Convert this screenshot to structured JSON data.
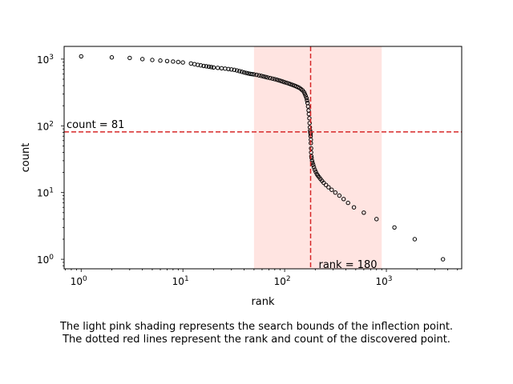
{
  "chart_data": {
    "type": "scatter",
    "xlabel": "rank",
    "ylabel": "count",
    "xscale": "log",
    "yscale": "log",
    "xlim": [
      0.68,
      5500
    ],
    "ylim": [
      0.72,
      1550
    ],
    "grid": false,
    "x_ticks": [
      {
        "value": 1,
        "base": "10",
        "exp": "0"
      },
      {
        "value": 10,
        "base": "10",
        "exp": "1"
      },
      {
        "value": 100,
        "base": "10",
        "exp": "2"
      },
      {
        "value": 1000,
        "base": "10",
        "exp": "3"
      }
    ],
    "y_ticks": [
      {
        "value": 1,
        "base": "10",
        "exp": "0"
      },
      {
        "value": 10,
        "base": "10",
        "exp": "1"
      },
      {
        "value": 100,
        "base": "10",
        "exp": "2"
      },
      {
        "value": 1000,
        "base": "10",
        "exp": "3"
      }
    ],
    "search_bounds": {
      "x_from": 50,
      "x_to": 900,
      "color": "#ffe4e1"
    },
    "inflection": {
      "rank": 180,
      "count": 81,
      "line_color": "#d62728",
      "rank_label": "rank = 180",
      "count_label": "count = 81"
    },
    "marker": {
      "style": "hollow-circle",
      "edge_color": "#000000"
    },
    "points": [
      [
        1,
        1100
      ],
      [
        2,
        1060
      ],
      [
        3,
        1040
      ],
      [
        4,
        1000
      ],
      [
        5,
        970
      ],
      [
        6,
        950
      ],
      [
        7,
        935
      ],
      [
        8,
        920
      ],
      [
        9,
        905
      ],
      [
        10,
        890
      ],
      [
        12,
        860
      ],
      [
        13,
        840
      ],
      [
        14,
        820
      ],
      [
        15,
        805
      ],
      [
        16,
        790
      ],
      [
        17,
        780
      ],
      [
        18,
        770
      ],
      [
        19,
        760
      ],
      [
        20,
        750
      ],
      [
        22,
        740
      ],
      [
        24,
        730
      ],
      [
        26,
        720
      ],
      [
        28,
        710
      ],
      [
        30,
        700
      ],
      [
        32,
        690
      ],
      [
        34,
        675
      ],
      [
        36,
        660
      ],
      [
        38,
        645
      ],
      [
        40,
        630
      ],
      [
        42,
        620
      ],
      [
        44,
        610
      ],
      [
        46,
        600
      ],
      [
        48,
        595
      ],
      [
        50,
        590
      ],
      [
        53,
        580
      ],
      [
        56,
        570
      ],
      [
        59,
        560
      ],
      [
        62,
        550
      ],
      [
        65,
        540
      ],
      [
        68,
        530
      ],
      [
        72,
        520
      ],
      [
        76,
        510
      ],
      [
        80,
        500
      ],
      [
        84,
        490
      ],
      [
        88,
        480
      ],
      [
        92,
        470
      ],
      [
        96,
        460
      ],
      [
        100,
        450
      ],
      [
        105,
        440
      ],
      [
        110,
        430
      ],
      [
        115,
        420
      ],
      [
        120,
        410
      ],
      [
        125,
        400
      ],
      [
        130,
        390
      ],
      [
        135,
        380
      ],
      [
        140,
        370
      ],
      [
        145,
        355
      ],
      [
        150,
        340
      ],
      [
        155,
        320
      ],
      [
        158,
        300
      ],
      [
        161,
        280
      ],
      [
        164,
        260
      ],
      [
        166,
        240
      ],
      [
        168,
        220
      ],
      [
        170,
        195
      ],
      [
        172,
        170
      ],
      [
        173,
        150
      ],
      [
        175,
        130
      ],
      [
        176,
        110
      ],
      [
        177,
        95
      ],
      [
        178,
        85
      ],
      [
        179,
        80
      ],
      [
        180,
        76
      ],
      [
        180,
        70
      ],
      [
        181,
        62
      ],
      [
        181,
        55
      ],
      [
        182,
        46
      ],
      [
        182,
        40
      ],
      [
        183,
        35
      ],
      [
        184,
        33
      ],
      [
        186,
        30
      ],
      [
        188,
        28
      ],
      [
        191,
        26
      ],
      [
        194,
        24
      ],
      [
        198,
        22
      ],
      [
        202,
        20.5
      ],
      [
        207,
        19
      ],
      [
        212,
        18
      ],
      [
        218,
        17
      ],
      [
        225,
        16
      ],
      [
        233,
        15
      ],
      [
        242,
        14
      ],
      [
        255,
        13
      ],
      [
        270,
        12
      ],
      [
        290,
        11
      ],
      [
        315,
        10
      ],
      [
        345,
        9
      ],
      [
        380,
        8
      ],
      [
        420,
        7
      ],
      [
        480,
        6
      ],
      [
        600,
        5
      ],
      [
        800,
        4
      ],
      [
        1200,
        3
      ],
      [
        1900,
        2
      ],
      [
        3600,
        1
      ]
    ]
  },
  "caption": {
    "line1": "The light pink shading represents the search bounds of the inflection point.",
    "line2": "The dotted red lines represent the rank and count of the discovered point."
  }
}
